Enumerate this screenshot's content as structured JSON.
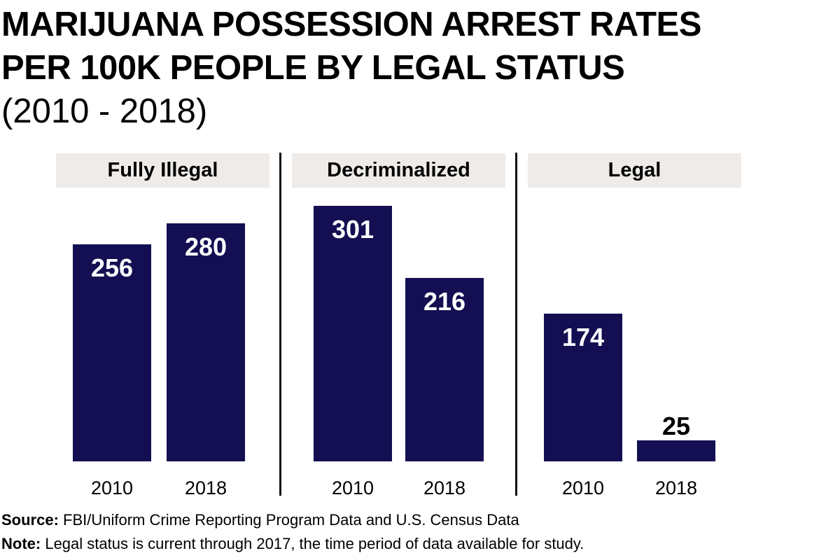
{
  "chart_data": {
    "type": "bar",
    "title": "MARIJUANA POSSESSION ARREST RATES PER 100K PEOPLE BY LEGAL STATUS",
    "title_lines": [
      "MARIJUANA POSSESSION ARREST RATES",
      "PER 100K PEOPLE BY LEGAL STATUS"
    ],
    "subtitle": "(2010 - 2018)",
    "groups": [
      {
        "name": "Fully Illegal",
        "categories": [
          "2010",
          "2018"
        ],
        "values": [
          256,
          280
        ]
      },
      {
        "name": "Decriminalized",
        "categories": [
          "2010",
          "2018"
        ],
        "values": [
          301,
          216
        ]
      },
      {
        "name": "Legal",
        "categories": [
          "2010",
          "2018"
        ],
        "values": [
          174,
          25
        ]
      }
    ],
    "xlabel": "",
    "ylabel": "",
    "ylim": [
      0,
      301
    ],
    "grid": false,
    "bar_color": "#140f52",
    "header_color": "#eeebe8"
  },
  "footer": {
    "source_label": "Source:",
    "source_text": " FBI/Uniform Crime Reporting Program Data and U.S. Census Data",
    "note_label": "Note:",
    "note_text": " Legal status is current through 2017, the time period of data available for study."
  }
}
